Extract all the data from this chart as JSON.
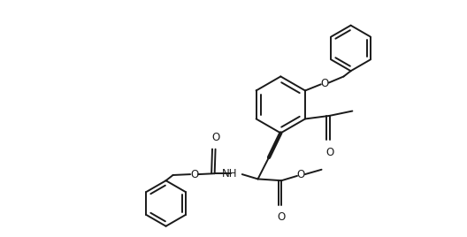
{
  "background": "#ffffff",
  "line_color": "#1a1a1a",
  "line_width": 1.4,
  "figsize": [
    5.28,
    2.68
  ],
  "dpi": 100,
  "xlim": [
    -1,
    10
  ],
  "ylim": [
    -0.5,
    5.5
  ]
}
